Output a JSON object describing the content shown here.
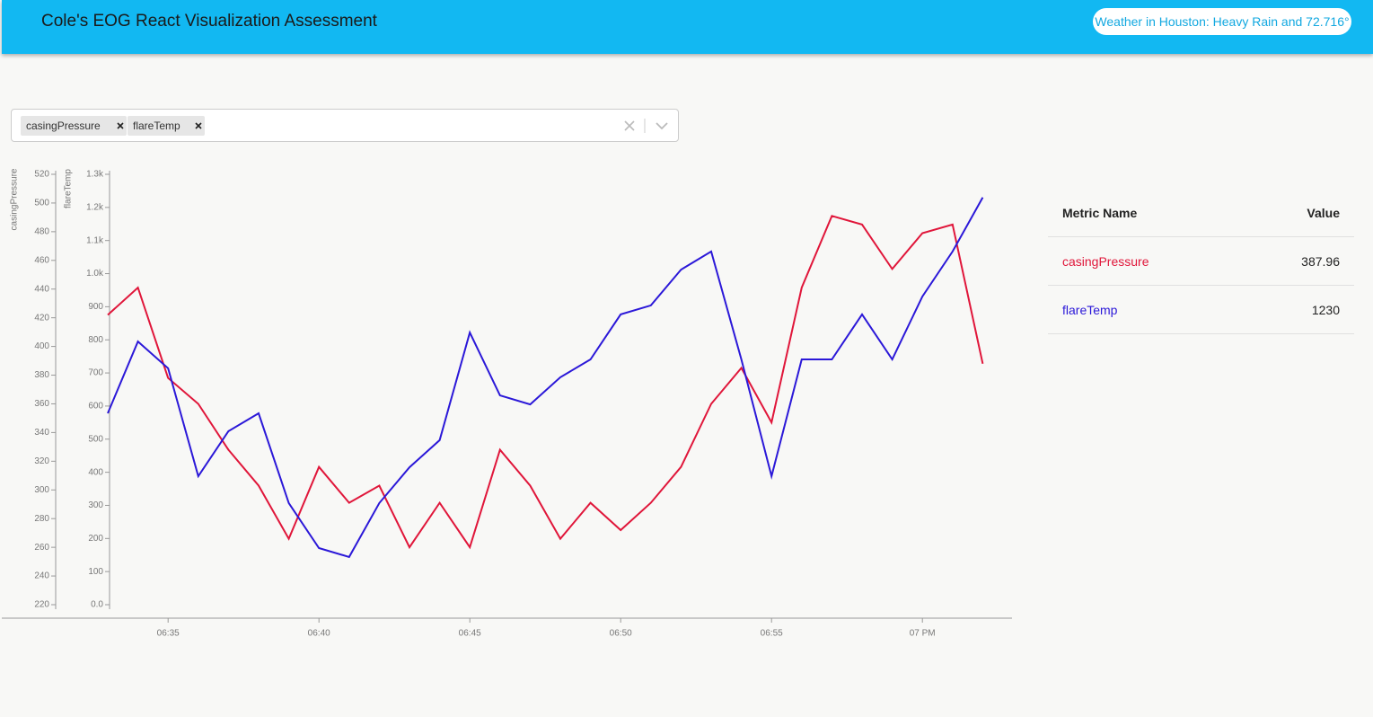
{
  "header": {
    "title": "Cole's EOG React Visualization Assessment",
    "weather": "Weather in Houston: Heavy Rain and 72.716°"
  },
  "selector": {
    "chips": [
      "casingPressure",
      "flareTemp"
    ]
  },
  "table": {
    "columns": [
      "Metric Name",
      "Value"
    ],
    "rows": [
      [
        "casingPressure",
        387.96
      ],
      [
        "flareTemp",
        1230
      ]
    ]
  },
  "chart_data": {
    "type": "line",
    "y_label": "casingPressure",
    "y2_label": "flareTemp",
    "x": [
      "06:33",
      "06:34",
      "06:35",
      "06:36",
      "06:37",
      "06:38",
      "06:39",
      "06:40",
      "06:41",
      "06:42",
      "06:43",
      "06:44",
      "06:45",
      "06:46",
      "06:47",
      "06:48",
      "06:49",
      "06:50",
      "06:51",
      "06:52",
      "06:53",
      "06:54",
      "06:55",
      "06:56",
      "06:57",
      "06:58",
      "06:59",
      "07:00",
      "07:01",
      "07:02"
    ],
    "xlim": [
      "06:33",
      "07:03"
    ],
    "xticks": [
      "06:35",
      "06:40",
      "06:45",
      "06:50",
      "06:55",
      {
        "value": "07:00",
        "label": "07 PM"
      }
    ],
    "ylim": [
      220,
      520
    ],
    "yticks": [
      220,
      240,
      260,
      280,
      300,
      320,
      340,
      360,
      380,
      400,
      420,
      440,
      460,
      480,
      500,
      520
    ],
    "y2lim": [
      0,
      1300
    ],
    "y2ticks": [
      {
        "value": 0,
        "label": "0.0"
      },
      100,
      200,
      300,
      400,
      500,
      600,
      700,
      800,
      900,
      {
        "value": 1000,
        "label": "1.0k"
      },
      {
        "value": 1100,
        "label": "1.1k"
      },
      {
        "value": 1200,
        "label": "1.2k"
      },
      {
        "value": 1300,
        "label": "1.3k"
      }
    ],
    "series": [
      {
        "name": "casingPressure",
        "color": "#e0163a",
        "values": [
          422,
          441,
          378,
          360,
          328,
          303,
          266,
          316,
          291,
          303,
          260,
          291,
          260,
          328,
          303,
          266,
          291,
          272,
          291,
          316,
          360,
          385,
          347,
          441,
          491,
          485,
          454,
          479,
          485,
          388
        ]
      },
      {
        "name": "flareTemp",
        "color": "#2b18d8",
        "axis": "y2",
        "values": [
          578,
          795,
          714,
          388,
          524,
          578,
          307,
          171,
          144,
          307,
          415,
          497,
          822,
          632,
          605,
          687,
          741,
          877,
          904,
          1012,
          1067,
          741,
          388,
          741,
          741,
          877,
          741,
          931,
          1067,
          1230
        ]
      }
    ]
  }
}
